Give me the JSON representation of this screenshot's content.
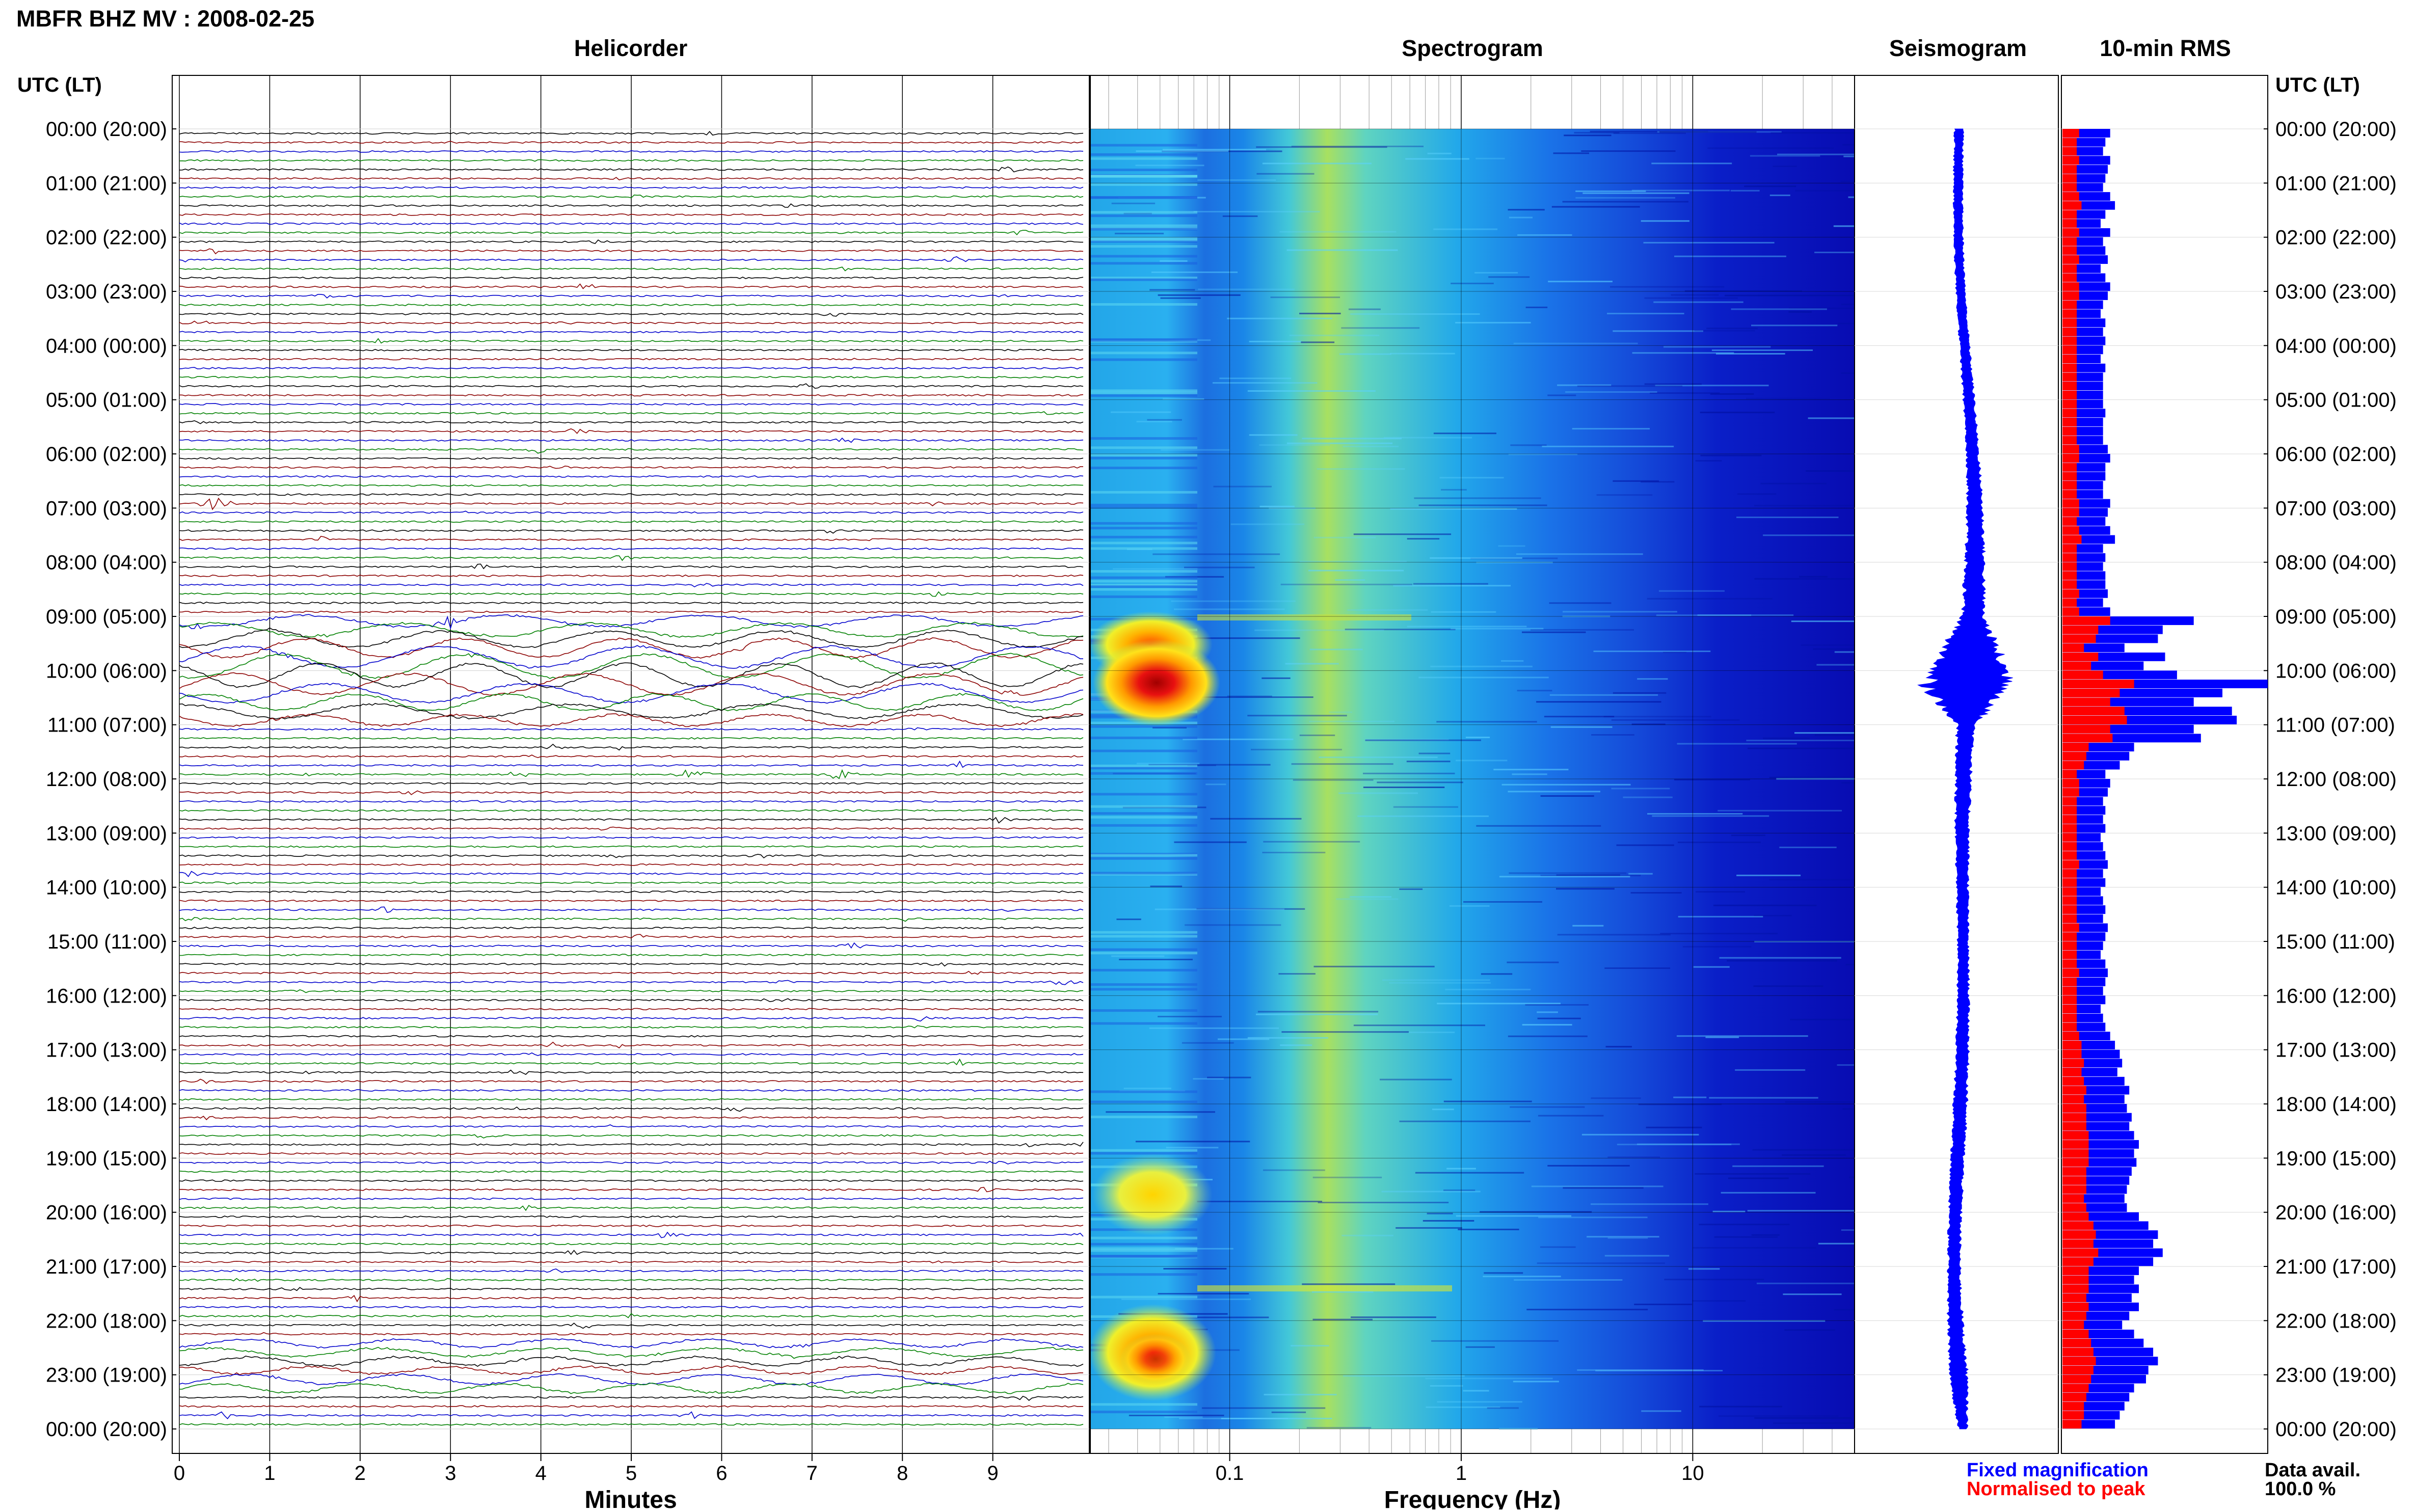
{
  "header": {
    "title": "MBFR BHZ MV : 2008-02-25",
    "utc_left": "UTC (LT)",
    "utc_right": "UTC (LT)"
  },
  "panels": {
    "helicorder": "Helicorder",
    "spectrogram": "Spectrogram",
    "seismogram": "Seismogram",
    "rms": "10-min RMS"
  },
  "time_labels": [
    "00:00 (20:00)",
    "01:00 (21:00)",
    "02:00 (22:00)",
    "03:00 (23:00)",
    "04:00 (00:00)",
    "05:00 (01:00)",
    "06:00 (02:00)",
    "07:00 (03:00)",
    "08:00 (04:00)",
    "09:00 (05:00)",
    "10:00 (06:00)",
    "11:00 (07:00)",
    "12:00 (08:00)",
    "13:00 (09:00)",
    "14:00 (10:00)",
    "15:00 (11:00)",
    "16:00 (12:00)",
    "17:00 (13:00)",
    "18:00 (14:00)",
    "19:00 (15:00)",
    "20:00 (16:00)",
    "21:00 (17:00)",
    "22:00 (18:00)",
    "23:00 (19:00)",
    "00:00 (20:00)"
  ],
  "legend": {
    "fixed": "Fixed magnification",
    "normalised": "Normalised to peak",
    "data_avail_label": "Data avail.",
    "data_avail_value": "100.0 %"
  },
  "colors": {
    "helicorder_traces": [
      "#000000",
      "#8b0000",
      "#0000cc",
      "#008000"
    ],
    "seismogram": "#0000ff",
    "rms_fixed": "#0000ff",
    "rms_normalised": "#ff0000",
    "legend_fixed": "#0000ff",
    "legend_normalised": "#ff0000",
    "spectrogram_scale": [
      "#00008b",
      "#0000ff",
      "#0080ff",
      "#00c0ff",
      "#40e0d0",
      "#c0ff40",
      "#ffff00",
      "#ff8000",
      "#ff0000",
      "#8b0000"
    ]
  },
  "chart_data": [
    {
      "type": "line",
      "panel": "Helicorder",
      "xlabel": "Minutes",
      "x_ticks": [
        "0",
        "1",
        "2",
        "3",
        "4",
        "5",
        "6",
        "7",
        "8",
        "9"
      ],
      "xlim": [
        0,
        10
      ],
      "rows": 144,
      "row_minutes": 10,
      "active_periods": [
        {
          "from": "09:00",
          "to": "10:50",
          "level": "high"
        },
        {
          "from": "22:20",
          "to": "23:10",
          "level": "medium"
        }
      ],
      "events": [
        {
          "time": "06:50",
          "minute": 0.4
        },
        {
          "time": "09:00",
          "minute": 3.0
        },
        {
          "time": "11:50",
          "minute": 5.7
        },
        {
          "time": "11:50",
          "minute": 7.3
        }
      ]
    },
    {
      "type": "heatmap",
      "panel": "Spectrogram",
      "xlabel": "Frequency (Hz)",
      "x_scale": "log",
      "x_ticks": [
        "0.1",
        "1",
        "10"
      ],
      "xlim": [
        0.025,
        50
      ],
      "high_energy": [
        {
          "from": "09:00",
          "to": "11:00",
          "freq_min": 0.03,
          "freq_max": 0.09
        },
        {
          "from": "19:00",
          "to": "20:30",
          "freq_min": 0.03,
          "freq_max": 0.08
        },
        {
          "from": "22:00",
          "to": "23:20",
          "freq_min": 0.03,
          "freq_max": 0.09
        }
      ]
    },
    {
      "type": "line",
      "panel": "Seismogram",
      "peak_envelope": [
        {
          "time": "00:00",
          "amp": 0.06
        },
        {
          "time": "03:00",
          "amp": 0.06
        },
        {
          "time": "06:00",
          "amp": 0.08
        },
        {
          "time": "09:00",
          "amp": 0.15
        },
        {
          "time": "10:15",
          "amp": 0.6
        },
        {
          "time": "11:00",
          "amp": 0.12
        },
        {
          "time": "12:00",
          "amp": 0.1
        },
        {
          "time": "15:00",
          "amp": 0.07
        },
        {
          "time": "18:00",
          "amp": 0.09
        },
        {
          "time": "21:00",
          "amp": 0.08
        },
        {
          "time": "23:00",
          "amp": 0.12
        },
        {
          "time": "24:00",
          "amp": 0.06
        }
      ]
    },
    {
      "type": "bar",
      "panel": "10-min RMS",
      "orientation": "horizontal",
      "series": [
        {
          "name": "Fixed magnification",
          "values": [
            20,
            18,
            17,
            20,
            19,
            18,
            17,
            20,
            22,
            18,
            16,
            20,
            17,
            18,
            19,
            16,
            18,
            20,
            19,
            17,
            16,
            18,
            17,
            18,
            17,
            16,
            18,
            17,
            17,
            17,
            17,
            18,
            17,
            17,
            17,
            19,
            20,
            18,
            18,
            17,
            17,
            20,
            19,
            18,
            20,
            22,
            17,
            18,
            17,
            18,
            18,
            19,
            17,
            20,
            55,
            42,
            40,
            26,
            43,
            34,
            48,
            86,
            67,
            55,
            71,
            73,
            55,
            58,
            30,
            28,
            24,
            18,
            20,
            19,
            17,
            18,
            17,
            18,
            16,
            17,
            18,
            19,
            17,
            18,
            16,
            17,
            18,
            17,
            19,
            18,
            17,
            16,
            18,
            19,
            18,
            17,
            18,
            16,
            17,
            18,
            20,
            22,
            24,
            25,
            23,
            26,
            28,
            26,
            27,
            29,
            28,
            30,
            32,
            30,
            31,
            29,
            28,
            27,
            26,
            27,
            32,
            36,
            40,
            38,
            42,
            38,
            32,
            30,
            32,
            29,
            32,
            28,
            25,
            30,
            34,
            38,
            40,
            36,
            35,
            30,
            28,
            26,
            24,
            22
          ]
        },
        {
          "name": "Normalised to peak",
          "values": [
            7,
            6,
            6,
            7,
            6,
            6,
            6,
            7,
            8,
            6,
            6,
            7,
            6,
            6,
            7,
            6,
            6,
            7,
            7,
            6,
            6,
            6,
            6,
            6,
            6,
            6,
            6,
            6,
            6,
            6,
            6,
            6,
            6,
            6,
            6,
            7,
            7,
            6,
            6,
            6,
            6,
            7,
            7,
            6,
            7,
            8,
            6,
            6,
            6,
            6,
            6,
            7,
            6,
            7,
            20,
            15,
            14,
            9,
            15,
            12,
            17,
            30,
            24,
            20,
            26,
            27,
            20,
            21,
            11,
            10,
            9,
            6,
            7,
            7,
            6,
            6,
            6,
            6,
            6,
            6,
            6,
            7,
            6,
            6,
            6,
            6,
            6,
            6,
            7,
            6,
            6,
            6,
            6,
            7,
            6,
            6,
            6,
            6,
            6,
            6,
            7,
            8,
            8,
            9,
            8,
            9,
            10,
            9,
            10,
            10,
            10,
            11,
            11,
            11,
            11,
            10,
            10,
            10,
            9,
            10,
            11,
            13,
            14,
            13,
            15,
            13,
            11,
            11,
            11,
            10,
            11,
            10,
            9,
            11,
            12,
            13,
            14,
            13,
            12,
            11,
            10,
            9,
            9,
            8
          ]
        }
      ]
    }
  ]
}
